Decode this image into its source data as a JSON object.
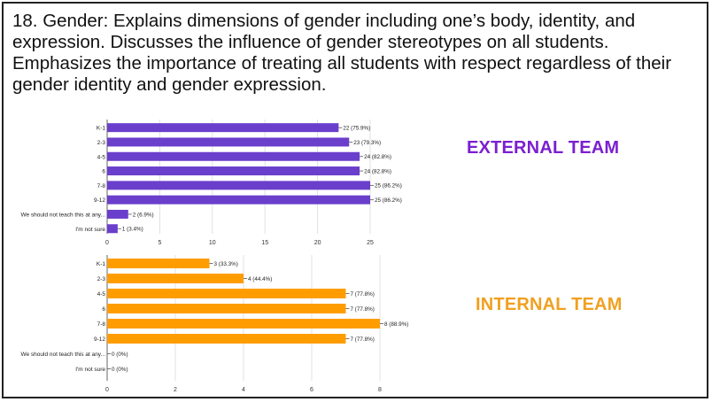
{
  "question": "18. Gender: Explains dimensions of gender including one’s body, identity, and expression. Discusses the influence of gender stereotypes on all students. Emphasizes the importance of treating all students with respect regardless of their gender identity and gender expression.",
  "teams": {
    "external": {
      "label": "EXTERNAL TEAM",
      "color": "#7b1fd1"
    },
    "internal": {
      "label": "INTERNAL TEAM",
      "color": "#f0a020"
    }
  },
  "chart_data": [
    {
      "type": "bar",
      "orientation": "horizontal",
      "categories": [
        "K-1",
        "2-3",
        "4-5",
        "6",
        "7-8",
        "9-12",
        "We should not teach this at any...",
        "I'm not sure"
      ],
      "values": [
        22,
        23,
        24,
        24,
        25,
        25,
        2,
        1
      ],
      "value_labels": [
        "22 (75.9%)",
        "23 (79.3%)",
        "24 (82.8%)",
        "24 (82.8%)",
        "25 (86.2%)",
        "25 (86.2%)",
        "2 (6.9%)",
        "1 (3.4%)"
      ],
      "xlim": [
        0,
        25
      ],
      "xticks": [
        "0",
        "5",
        "10",
        "15",
        "20",
        "25"
      ],
      "color": "#6a3fcc",
      "grid": true
    },
    {
      "type": "bar",
      "orientation": "horizontal",
      "categories": [
        "K-1",
        "2-3",
        "4-5",
        "6",
        "7-8",
        "9-12",
        "We should not teach this at any...",
        "I'm not sure"
      ],
      "values": [
        3,
        4,
        7,
        7,
        8,
        7,
        0,
        0
      ],
      "value_labels": [
        "3 (33.3%)",
        "4 (44.4%)",
        "7 (77.8%)",
        "7 (77.8%)",
        "8 (88.9%)",
        "7 (77.8%)",
        "0 (0%)",
        "0 (0%)"
      ],
      "xlim": [
        0,
        8
      ],
      "xticks": [
        "0",
        "2",
        "4",
        "6",
        "8"
      ],
      "color": "#ff9d00",
      "grid": true
    }
  ]
}
